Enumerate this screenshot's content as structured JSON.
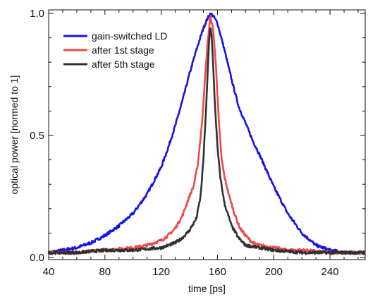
{
  "chart_data": {
    "type": "line",
    "xlabel": "time [ps]",
    "ylabel": "optical power [normed to 1]",
    "xlim": [
      40,
      265
    ],
    "ylim": [
      0.0,
      1.0
    ],
    "x_ticks": [
      40,
      80,
      120,
      160,
      200,
      240
    ],
    "x_tick_labels": [
      "40",
      "80",
      "120",
      "160",
      "200",
      "240"
    ],
    "y_ticks": [
      0.0,
      0.5,
      1.0
    ],
    "y_tick_labels": [
      "0.0",
      "0.5",
      "1.0"
    ],
    "grid": false,
    "legend_position": "top-left",
    "series": [
      {
        "name": "gain-switched LD",
        "color": "#1414e6",
        "x": [
          40,
          50,
          60,
          70,
          80,
          90,
          100,
          110,
          120,
          125,
          130,
          135,
          140,
          145,
          150,
          153,
          155,
          157,
          160,
          165,
          170,
          175,
          180,
          185,
          190,
          200,
          210,
          220,
          230,
          240,
          250,
          260,
          265
        ],
        "y": [
          0.02,
          0.03,
          0.04,
          0.06,
          0.09,
          0.13,
          0.18,
          0.26,
          0.37,
          0.45,
          0.54,
          0.64,
          0.75,
          0.85,
          0.94,
          0.98,
          1.0,
          0.99,
          0.96,
          0.85,
          0.73,
          0.62,
          0.55,
          0.48,
          0.42,
          0.29,
          0.18,
          0.1,
          0.05,
          0.03,
          0.02,
          0.02,
          0.02
        ]
      },
      {
        "name": "after 1st stage",
        "color": "#f04848",
        "x": [
          40,
          60,
          80,
          100,
          110,
          120,
          125,
          130,
          135,
          140,
          143,
          146,
          149,
          151,
          153,
          155,
          157,
          159,
          161,
          163,
          165,
          168,
          172,
          176,
          180,
          185,
          190,
          200,
          210,
          220,
          240,
          265
        ],
        "y": [
          0.02,
          0.02,
          0.03,
          0.04,
          0.05,
          0.07,
          0.09,
          0.12,
          0.17,
          0.25,
          0.29,
          0.38,
          0.55,
          0.72,
          0.88,
          0.99,
          0.93,
          0.78,
          0.55,
          0.4,
          0.33,
          0.26,
          0.18,
          0.12,
          0.09,
          0.06,
          0.05,
          0.04,
          0.03,
          0.03,
          0.02,
          0.02
        ]
      },
      {
        "name": "after 5th stage",
        "color": "#303030",
        "x": [
          40,
          60,
          80,
          100,
          120,
          130,
          135,
          140,
          145,
          148,
          150,
          152,
          154,
          155,
          156,
          158,
          160,
          162,
          165,
          170,
          175,
          180,
          190,
          200,
          220,
          240,
          265
        ],
        "y": [
          0.02,
          0.02,
          0.03,
          0.03,
          0.04,
          0.06,
          0.08,
          0.11,
          0.16,
          0.25,
          0.4,
          0.62,
          0.88,
          0.95,
          0.9,
          0.65,
          0.45,
          0.33,
          0.22,
          0.13,
          0.08,
          0.05,
          0.04,
          0.03,
          0.02,
          0.02,
          0.02
        ]
      }
    ]
  }
}
